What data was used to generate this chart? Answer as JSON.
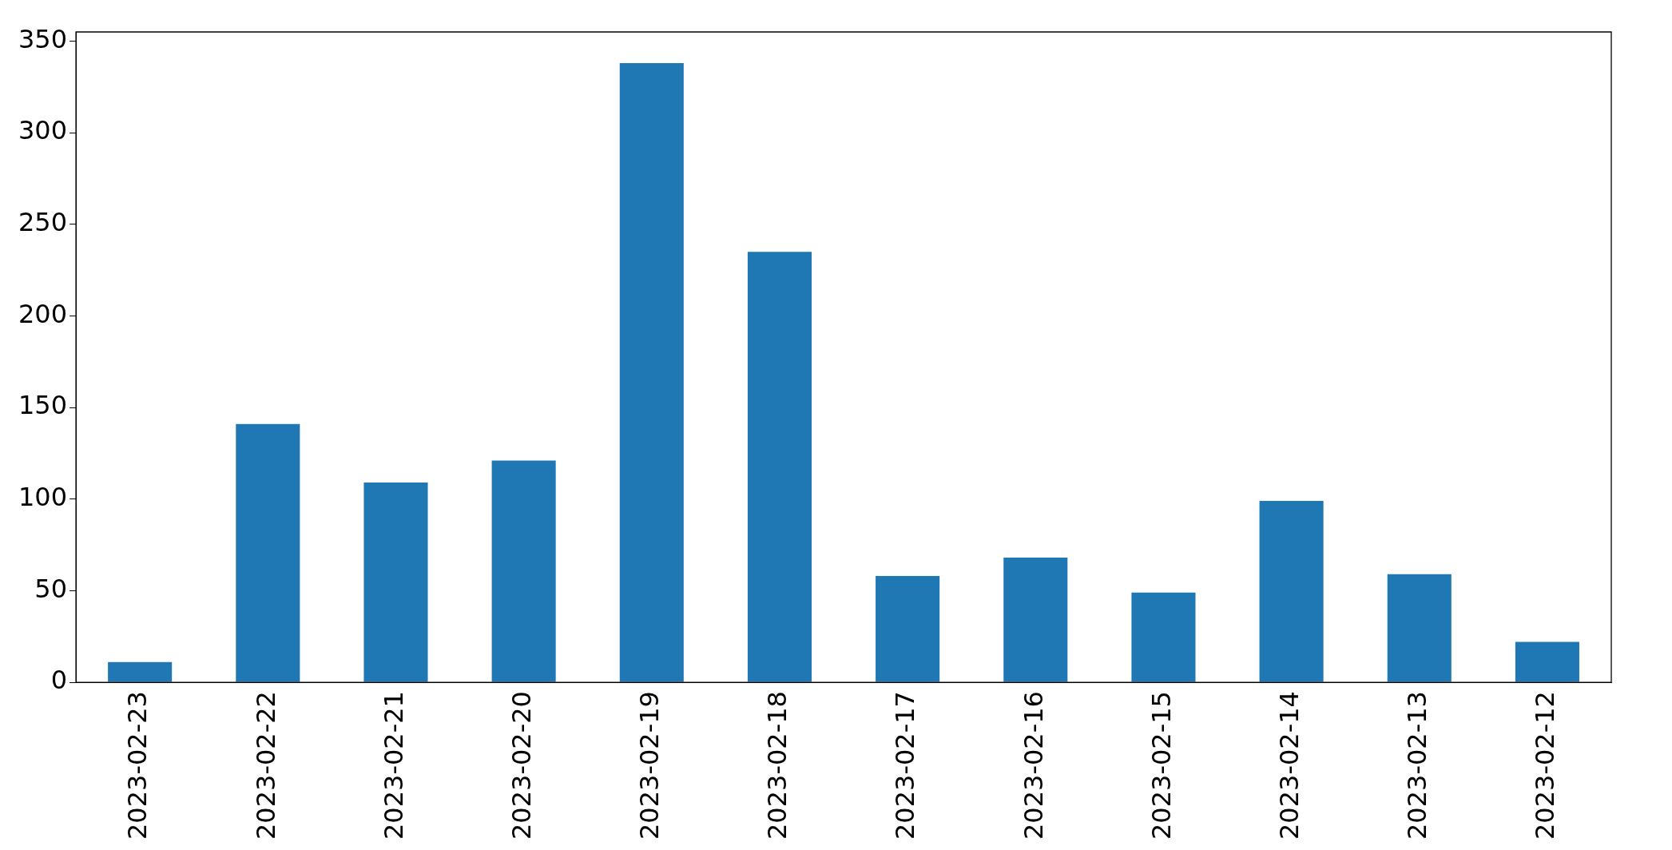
{
  "chart_data": {
    "type": "bar",
    "categories": [
      "2023-02-23",
      "2023-02-22",
      "2023-02-21",
      "2023-02-20",
      "2023-02-19",
      "2023-02-18",
      "2023-02-17",
      "2023-02-16",
      "2023-02-15",
      "2023-02-14",
      "2023-02-13",
      "2023-02-12"
    ],
    "values": [
      11,
      141,
      109,
      121,
      338,
      235,
      58,
      68,
      49,
      99,
      59,
      22
    ],
    "color": "#1f77b4",
    "ylim": [
      0,
      355
    ],
    "yticks": [
      0,
      50,
      100,
      150,
      200,
      250,
      300,
      350
    ],
    "grid": false,
    "legend": false
  }
}
